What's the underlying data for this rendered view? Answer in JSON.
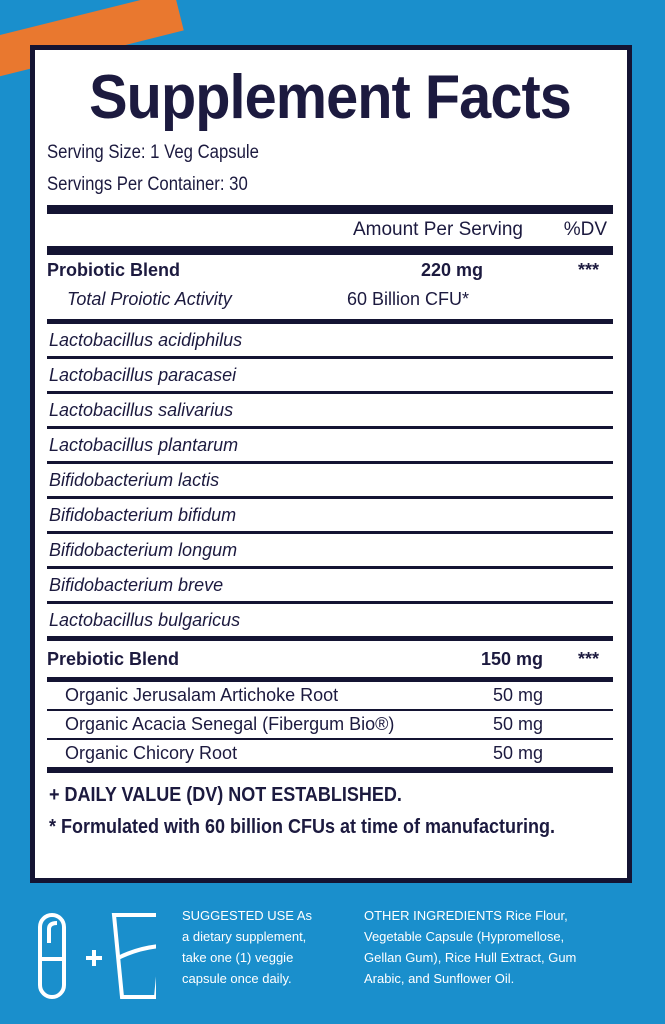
{
  "title": "Supplement Facts",
  "serving_size": "Serving Size: 1 Veg Capsule",
  "servings_per_container": "Servings Per Container: 30",
  "header": {
    "amount": "Amount Per Serving",
    "dv": "%DV"
  },
  "probiotic": {
    "name": "Probiotic Blend",
    "amount": "220 mg",
    "dv": "***",
    "sub_name": "Total Proiotic Activity",
    "sub_amount": "60 Billion CFU*"
  },
  "strains": [
    "Lactobacillus acidiphilus",
    "Lactobacillus paracasei",
    "Lactobacillus salivarius",
    "Lactobacillus plantarum",
    "Bifidobacterium lactis",
    "Bifidobacterium bifidum",
    "Bifidobacterium longum",
    "Bifidobacterium breve",
    "Lactobacillus bulgaricus"
  ],
  "prebiotic": {
    "name": "Prebiotic Blend",
    "amount": "150 mg",
    "dv": "***",
    "items": [
      {
        "name": "Organic Jerusalam Artichoke Root",
        "amount": "50 mg"
      },
      {
        "name": "Organic Acacia Senegal (Fibergum Bio®)",
        "amount": "50 mg"
      },
      {
        "name": "Organic Chicory Root",
        "amount": "50 mg"
      }
    ]
  },
  "footnotes": [
    "+ DAILY VALUE (DV) NOT ESTABLISHED.",
    "* Formulated with 60 billion CFUs at time of manufacturing."
  ],
  "suggested_use": [
    "SUGGESTED USE As",
    "a dietary supplement,",
    "take one (1) veggie",
    "capsule once daily."
  ],
  "other_ingredients": [
    "OTHER INGREDIENTS Rice Flour,",
    "Vegetable Capsule (Hypromellose,",
    "Gellan Gum), Rice Hull Extract, Gum",
    "Arabic, and Sunflower Oil."
  ],
  "icons": [
    "capsule-icon",
    "plus-icon",
    "glass-of-water-icon"
  ],
  "colors": {
    "background": "#1a8fcc",
    "text": "#1c1a3f",
    "accent": "#e9782f"
  }
}
